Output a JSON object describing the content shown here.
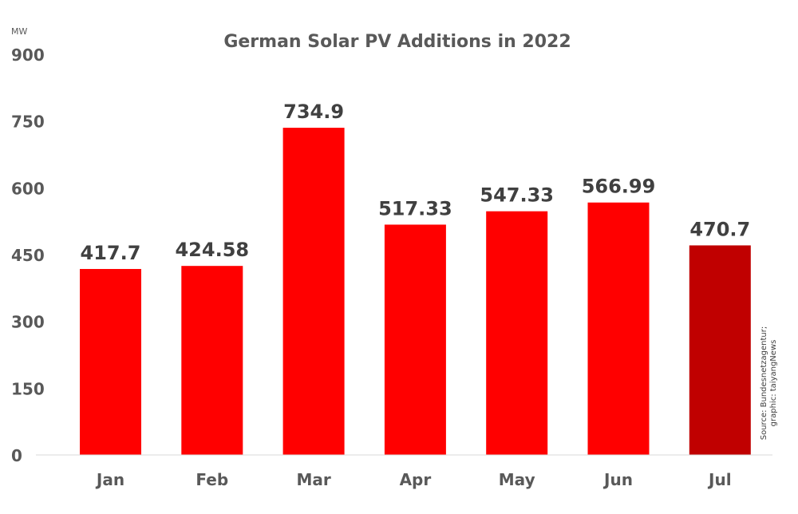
{
  "chart_data": {
    "type": "bar",
    "title": "German Solar PV Additions in 2022",
    "ylabel": "MW",
    "xlabel": "",
    "categories": [
      "Jan",
      "Feb",
      "Mar",
      "Apr",
      "May",
      "Jun",
      "Jul"
    ],
    "values": [
      417.7,
      424.58,
      734.9,
      517.33,
      547.33,
      566.99,
      470.7
    ],
    "data_labels": [
      "417.7",
      "424.58",
      "734.9",
      "517.33",
      "547.33",
      "566.99",
      "470.7"
    ],
    "ylim": [
      0,
      900
    ],
    "yticks": [
      "0",
      "150",
      "300",
      "450",
      "600",
      "750",
      "900"
    ],
    "grid": false,
    "legend": "none",
    "colors": {
      "bar": "#ff0000",
      "highlight_bar": "#c00000",
      "highlight_index": 6,
      "text": "#595959",
      "label": "#404040"
    },
    "annotation": [
      "Source: Bundesnetzagentur;",
      "graphic: taiyangNews"
    ]
  }
}
